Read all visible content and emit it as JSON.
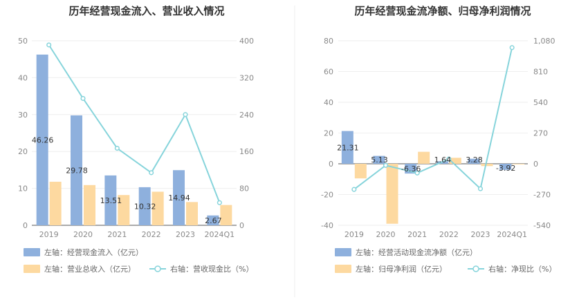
{
  "chart_data": [
    {
      "type": "bar",
      "title": "历年经营现金流入、营业收入情况",
      "categories": [
        "2019",
        "2020",
        "2021",
        "2022",
        "2023",
        "2024Q1"
      ],
      "left_ticks": [
        "0",
        "10",
        "20",
        "30",
        "40",
        "50"
      ],
      "right_ticks": [
        "0",
        "80",
        "160",
        "240",
        "320",
        "400"
      ],
      "ylim_left": [
        0,
        50
      ],
      "ylim_right": [
        0,
        400
      ],
      "series": [
        {
          "name": "左轴：经营现金流入（亿元）",
          "axis": "left",
          "kind": "bar",
          "color": "#8eb0dd",
          "values": [
            46.26,
            29.78,
            13.51,
            10.32,
            14.94,
            2.67
          ],
          "labels": [
            "46.26",
            "29.78",
            "13.51",
            "10.32",
            "14.94",
            "2.67"
          ]
        },
        {
          "name": "左轴：营业总收入（亿元）",
          "axis": "left",
          "kind": "bar",
          "color": "#fdd9a0",
          "values": [
            11.8,
            10.9,
            8.2,
            9.1,
            6.3,
            5.5
          ]
        },
        {
          "name": "右轴：营收现金比（%）",
          "axis": "right",
          "kind": "line",
          "color": "#86d4db",
          "values": [
            391,
            275,
            167,
            114,
            240,
            49
          ]
        }
      ],
      "grid": true,
      "legend_position": "bottom-left"
    },
    {
      "type": "bar",
      "title": "历年经营现金流净额、归母净利润情况",
      "categories": [
        "2019",
        "2020",
        "2021",
        "2022",
        "2023",
        "2024Q1"
      ],
      "left_ticks": [
        "-40",
        "-20",
        "0",
        "20",
        "40",
        "60",
        "80"
      ],
      "right_ticks": [
        "-540",
        "-270",
        "0",
        "270",
        "540",
        "810",
        "1,080"
      ],
      "ylim_left": [
        -40,
        80
      ],
      "ylim_right": [
        -540,
        1080
      ],
      "series": [
        {
          "name": "左轴：经营活动现金流净额（亿元）",
          "axis": "left",
          "kind": "bar",
          "color": "#8eb0dd",
          "values": [
            21.31,
            5.13,
            -6.36,
            1.64,
            3.28,
            -3.92
          ],
          "labels": [
            "21.31",
            "5.13",
            "-6.36",
            "1.64",
            "3.28",
            "-3.92"
          ]
        },
        {
          "name": "左轴：归母净利润（亿元）",
          "axis": "left",
          "kind": "bar",
          "color": "#fdd9a0",
          "values": [
            -9.5,
            -39,
            7.8,
            3.9,
            -1.5,
            -0.4
          ]
        },
        {
          "name": "右轴：净现比（%）",
          "axis": "right",
          "kind": "line",
          "color": "#86d4db",
          "values": [
            -225,
            -14,
            -81,
            42,
            -219,
            1020
          ]
        }
      ],
      "grid": true,
      "legend_position": "bottom-left"
    }
  ]
}
